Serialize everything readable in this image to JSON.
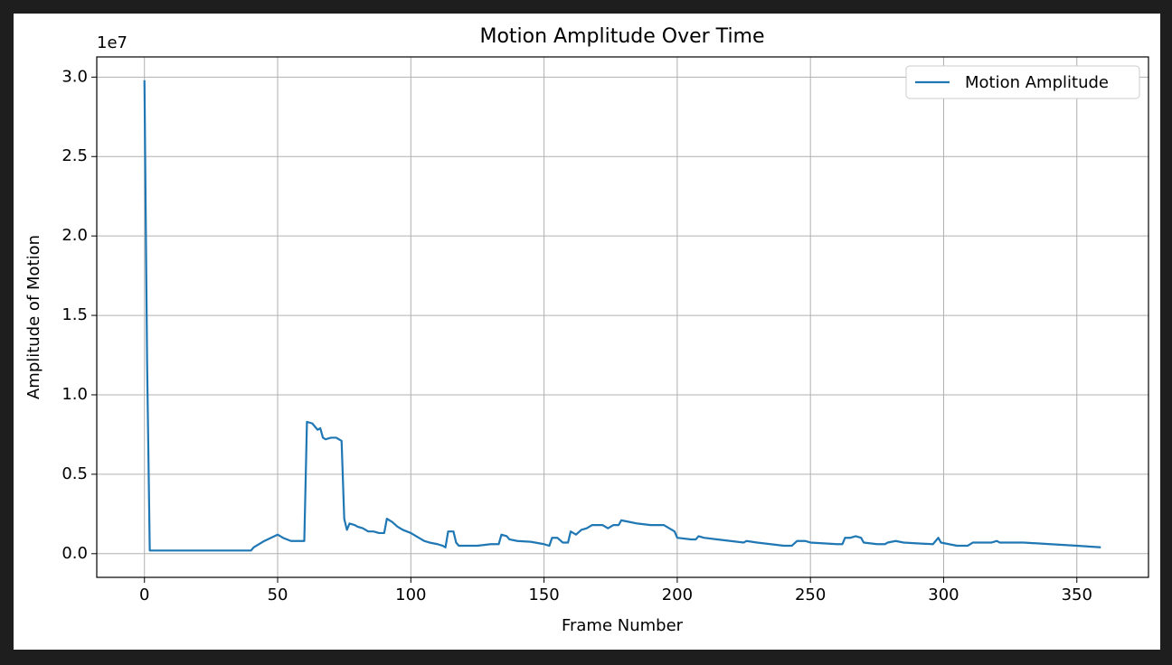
{
  "chart_data": {
    "type": "line",
    "title": "Motion Amplitude Over Time",
    "x_label": "Frame Number",
    "y_label": "Amplitude of Motion",
    "y_offset_label": "1e7",
    "x": [
      0,
      1,
      2,
      10,
      20,
      30,
      40,
      41,
      45,
      50,
      52,
      55,
      60,
      61,
      63,
      64,
      65,
      66,
      67,
      68,
      70,
      72,
      73,
      74,
      75,
      76,
      77,
      79,
      80,
      82,
      84,
      86,
      88,
      90,
      91,
      93,
      95,
      97,
      100,
      102,
      105,
      107,
      110,
      112,
      113,
      114,
      116,
      117,
      118,
      120,
      125,
      130,
      133,
      134,
      136,
      137,
      140,
      145,
      150,
      152,
      153,
      155,
      157,
      159,
      160,
      162,
      164,
      166,
      168,
      172,
      174,
      176,
      178,
      179,
      182,
      185,
      190,
      195,
      197,
      199,
      200,
      205,
      207,
      208,
      210,
      215,
      220,
      225,
      226,
      230,
      235,
      240,
      243,
      245,
      248,
      250,
      260,
      262,
      263,
      265,
      267,
      269,
      270,
      275,
      278,
      279,
      282,
      285,
      290,
      296,
      298,
      299,
      302,
      305,
      309,
      311,
      318,
      320,
      321,
      330,
      340,
      350,
      359
    ],
    "series": [
      {
        "name": "Motion Amplitude",
        "color": "#1f77b4",
        "values": [
          2.98,
          1.2,
          0.02,
          0.02,
          0.02,
          0.02,
          0.02,
          0.04,
          0.08,
          0.12,
          0.1,
          0.08,
          0.08,
          0.83,
          0.82,
          0.8,
          0.78,
          0.79,
          0.73,
          0.72,
          0.73,
          0.73,
          0.72,
          0.71,
          0.22,
          0.15,
          0.19,
          0.18,
          0.17,
          0.16,
          0.14,
          0.14,
          0.13,
          0.13,
          0.22,
          0.2,
          0.17,
          0.15,
          0.13,
          0.11,
          0.08,
          0.07,
          0.06,
          0.05,
          0.04,
          0.14,
          0.14,
          0.07,
          0.05,
          0.05,
          0.05,
          0.06,
          0.06,
          0.12,
          0.11,
          0.09,
          0.08,
          0.075,
          0.06,
          0.05,
          0.1,
          0.1,
          0.07,
          0.07,
          0.14,
          0.12,
          0.15,
          0.16,
          0.18,
          0.18,
          0.16,
          0.18,
          0.18,
          0.21,
          0.2,
          0.19,
          0.18,
          0.18,
          0.16,
          0.14,
          0.1,
          0.09,
          0.09,
          0.11,
          0.1,
          0.09,
          0.08,
          0.07,
          0.08,
          0.07,
          0.06,
          0.05,
          0.05,
          0.08,
          0.08,
          0.07,
          0.06,
          0.06,
          0.1,
          0.1,
          0.11,
          0.1,
          0.07,
          0.06,
          0.06,
          0.07,
          0.08,
          0.07,
          0.065,
          0.06,
          0.1,
          0.07,
          0.06,
          0.05,
          0.05,
          0.07,
          0.07,
          0.08,
          0.07,
          0.07,
          0.06,
          0.05,
          0.04
        ]
      }
    ],
    "xlim": [
      -17.9,
      376.9
    ],
    "ylim": [
      -0.149,
      3.127
    ],
    "xticks": [
      0,
      50,
      100,
      150,
      200,
      250,
      300,
      350
    ],
    "yticks": [
      {
        "value": 0,
        "label": "0.0"
      },
      0.5,
      {
        "value": 1,
        "label": "1.0"
      },
      1.5,
      {
        "value": 2,
        "label": "2.0"
      },
      2.5,
      {
        "value": 3,
        "label": "3.0"
      }
    ],
    "grid": true,
    "legend": "upper right"
  }
}
